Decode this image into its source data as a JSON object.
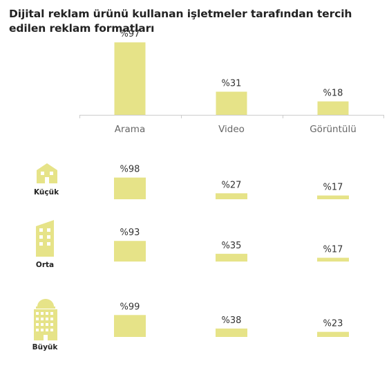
{
  "title": "Dijital reklam ürünü kullanan işletmeler tarafından tercih edilen reklam formatları",
  "colors": {
    "bar": "#e6e388",
    "building": "#e6e388",
    "axis": "#cccccc"
  },
  "chart_data": [
    {
      "type": "bar",
      "categories": [
        "Arama",
        "Video",
        "Görüntülü"
      ],
      "values": [
        97,
        31,
        18
      ],
      "value_labels": [
        "%97",
        "%31",
        "%18"
      ],
      "ylim": [
        0,
        100
      ]
    },
    {
      "type": "bar",
      "group": "Küçük",
      "icon": "small-building-icon",
      "categories": [
        "Arama",
        "Video",
        "Görüntülü"
      ],
      "values": [
        98,
        27,
        17
      ],
      "value_labels": [
        "%98",
        "%27",
        "%17"
      ],
      "ylim": [
        0,
        100
      ]
    },
    {
      "type": "bar",
      "group": "Orta",
      "icon": "medium-building-icon",
      "categories": [
        "Arama",
        "Video",
        "Görüntülü"
      ],
      "values": [
        93,
        35,
        17
      ],
      "value_labels": [
        "%93",
        "%35",
        "%17"
      ],
      "ylim": [
        0,
        100
      ]
    },
    {
      "type": "bar",
      "group": "Büyük",
      "icon": "large-building-icon",
      "categories": [
        "Arama",
        "Video",
        "Görüntülü"
      ],
      "values": [
        99,
        38,
        23
      ],
      "value_labels": [
        "%99",
        "%38",
        "%23"
      ],
      "ylim": [
        0,
        100
      ]
    }
  ]
}
